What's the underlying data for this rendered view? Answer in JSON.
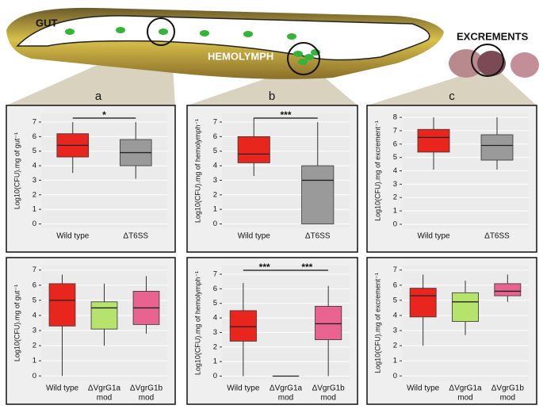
{
  "illustration": {
    "labels": [
      "GUT",
      "HEMOLYMPH",
      "EXCREMENTS"
    ]
  },
  "panel_labels": [
    "a",
    "b",
    "c"
  ],
  "chart_data": [
    {
      "type": "box",
      "y_label": "Log10(CFU).mg of gut⁻¹",
      "categories": [
        "Wild type",
        "ΔT6SS"
      ],
      "colors": [
        "#e8261e",
        "#9a9a9a"
      ],
      "stats": [
        {
          "low": 3.5,
          "q1": 4.6,
          "median": 5.4,
          "q3": 6.2,
          "high": 7.0
        },
        {
          "low": 3.1,
          "q1": 4.0,
          "median": 4.9,
          "q3": 5.8,
          "high": 7.0
        }
      ],
      "ylim": [
        -0.3,
        7.6
      ],
      "yticks": [
        0,
        1,
        2,
        3,
        4,
        5,
        6,
        7
      ],
      "significance": [
        "*"
      ]
    },
    {
      "type": "box",
      "y_label": "Log10(CFU).mg of hemolymph⁻¹",
      "categories": [
        "Wild type",
        "ΔT6SS"
      ],
      "colors": [
        "#e8261e",
        "#9a9a9a"
      ],
      "stats": [
        {
          "low": 3.3,
          "q1": 4.2,
          "median": 4.8,
          "q3": 6.0,
          "high": 7.3
        },
        {
          "low": 0,
          "q1": 0,
          "median": 3.0,
          "q3": 4.0,
          "high": 7.0
        }
      ],
      "ylim": [
        -0.3,
        7.6
      ],
      "yticks": [
        0,
        1,
        2,
        3,
        4,
        5,
        6,
        7
      ],
      "significance": [
        "***"
      ]
    },
    {
      "type": "box",
      "y_label": "Log10(CFU).mg of excrement⁻¹",
      "categories": [
        "Wild type",
        "ΔT6SS"
      ],
      "colors": [
        "#e8261e",
        "#9a9a9a"
      ],
      "stats": [
        {
          "low": 4.1,
          "q1": 5.4,
          "median": 6.5,
          "q3": 7.1,
          "high": 8.0
        },
        {
          "low": 4.1,
          "q1": 4.8,
          "median": 5.9,
          "q3": 6.7,
          "high": 8.0
        }
      ],
      "ylim": [
        -0.3,
        8.3
      ],
      "yticks": [
        0,
        1,
        2,
        3,
        4,
        5,
        6,
        7,
        8
      ],
      "significance": []
    },
    {
      "type": "box",
      "y_label": "Log10(CFU).mg of gut⁻¹",
      "categories": [
        "Wild type",
        [
          "ΔVgrG1a",
          "mod"
        ],
        [
          "ΔVgrG1b",
          "mod"
        ]
      ],
      "colors": [
        "#e8261e",
        "#b5e36c",
        "#e8638f"
      ],
      "stats": [
        {
          "low": 0,
          "q1": 3.3,
          "median": 5.0,
          "q3": 6.1,
          "high": 6.7
        },
        {
          "low": 2.0,
          "q1": 3.1,
          "median": 4.5,
          "q3": 4.9,
          "high": 6.1
        },
        {
          "low": 2.8,
          "q1": 3.4,
          "median": 4.5,
          "q3": 5.6,
          "high": 6.6
        }
      ],
      "ylim": [
        -0.3,
        7.3
      ],
      "yticks": [
        0,
        1,
        2,
        3,
        4,
        5,
        6,
        7
      ],
      "significance": []
    },
    {
      "type": "box",
      "y_label": "Log10(CFU).mg of hemolymph⁻¹",
      "categories": [
        "Wild type",
        [
          "ΔVgrG1a",
          "mod"
        ],
        [
          "ΔVgrG1b",
          "mod"
        ]
      ],
      "colors": [
        "#e8261e",
        "#b5e36c",
        "#e8638f"
      ],
      "stats": [
        {
          "low": 0,
          "q1": 2.4,
          "median": 3.4,
          "q3": 4.5,
          "high": 6.4
        },
        {
          "low": 0,
          "q1": 0,
          "median": 0,
          "q3": 0,
          "high": 0
        },
        {
          "low": 0,
          "q1": 2.5,
          "median": 3.6,
          "q3": 4.8,
          "high": 6.2
        }
      ],
      "ylim": [
        -0.3,
        7.6
      ],
      "yticks": [
        0,
        1,
        2,
        3,
        4,
        5,
        6,
        7
      ],
      "significance": [
        "***",
        "***"
      ]
    },
    {
      "type": "box",
      "y_label": "Log10(CFU).mg of excrement⁻¹",
      "categories": [
        "Wild type",
        [
          "ΔVgrG1a",
          "mod"
        ],
        [
          "ΔVgrG1b",
          "mod"
        ]
      ],
      "colors": [
        "#e8261e",
        "#b5e36c",
        "#e8638f"
      ],
      "stats": [
        {
          "low": 2.0,
          "q1": 3.9,
          "median": 5.3,
          "q3": 5.8,
          "high": 6.7
        },
        {
          "low": 2.7,
          "q1": 3.6,
          "median": 4.9,
          "q3": 5.5,
          "high": 6.3
        },
        {
          "low": 4.9,
          "q1": 5.3,
          "median": 5.6,
          "q3": 6.1,
          "high": 6.7
        }
      ],
      "ylim": [
        -0.3,
        7.3
      ],
      "yticks": [
        0,
        1,
        2,
        3,
        4,
        5,
        6,
        7
      ],
      "significance": []
    }
  ]
}
